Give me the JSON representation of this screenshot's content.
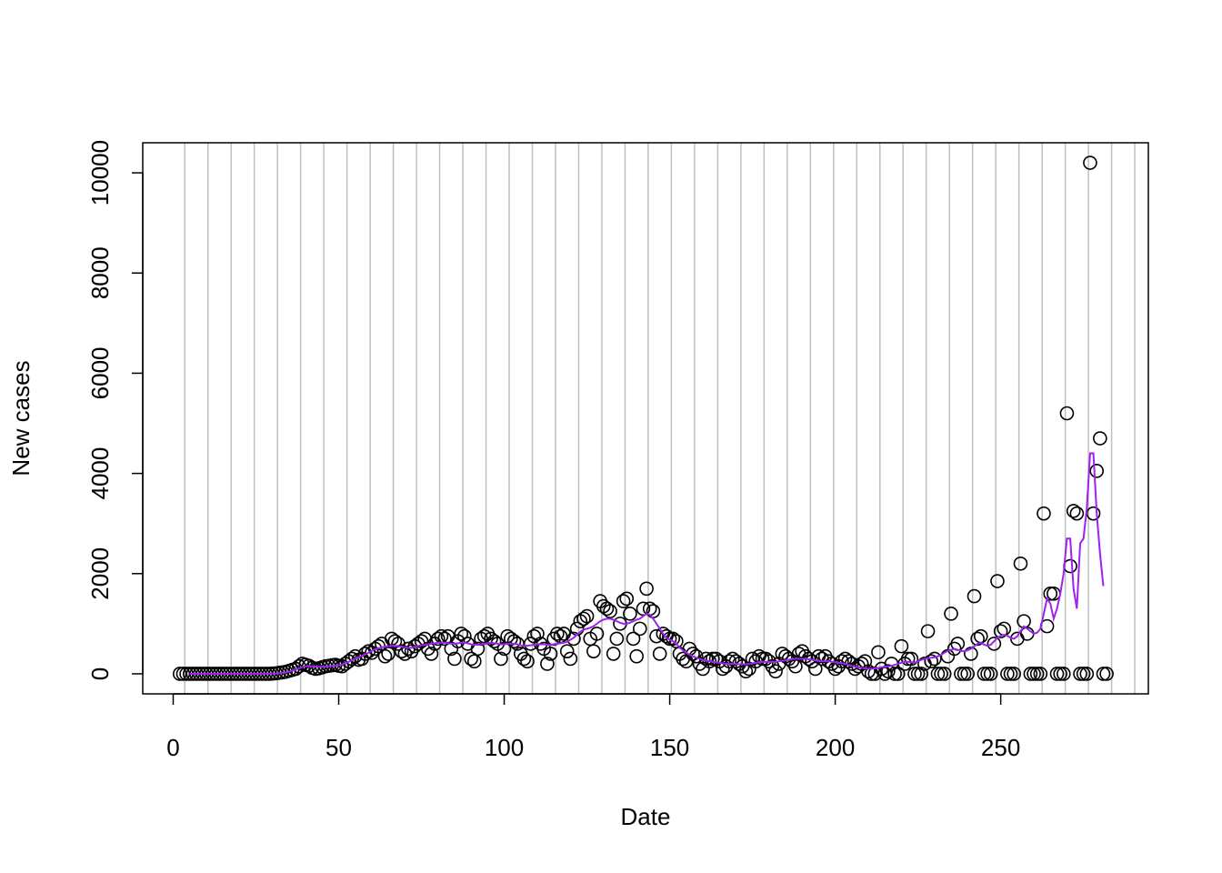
{
  "chart_data": {
    "type": "scatter",
    "xlabel": "Date",
    "ylabel": "New cases",
    "xlim": [
      -9.2,
      294.6
    ],
    "ylim": [
      -400,
      10600
    ],
    "xticks": [
      0,
      50,
      100,
      150,
      200,
      250
    ],
    "yticks": [
      0,
      2000,
      4000,
      6000,
      8000,
      10000
    ],
    "grid": "x",
    "x_gridlines": [
      3.5,
      10.5,
      17.5,
      24.5,
      31.5,
      38.5,
      45.5,
      52.5,
      59.5,
      66.5,
      73.5,
      80.5,
      87.5,
      94.5,
      101.5,
      108.5,
      115.5,
      122.5,
      129.5,
      136.5,
      143.5,
      150.5,
      157.5,
      164.5,
      171.5,
      178.5,
      185.5,
      192.5,
      199.5,
      206.5,
      213.5,
      220.5,
      227.5,
      234.5,
      241.5,
      248.5,
      255.5,
      262.5,
      269.5,
      276.5,
      283.5,
      290.5
    ],
    "x": [
      2,
      3,
      4,
      5,
      6,
      7,
      8,
      9,
      10,
      11,
      12,
      13,
      14,
      15,
      16,
      17,
      18,
      19,
      20,
      21,
      22,
      23,
      24,
      25,
      26,
      27,
      28,
      29,
      30,
      31,
      32,
      33,
      34,
      35,
      36,
      37,
      38,
      39,
      40,
      41,
      42,
      43,
      44,
      45,
      46,
      47,
      48,
      49,
      50,
      51,
      52,
      53,
      54,
      55,
      56,
      57,
      58,
      59,
      60,
      61,
      62,
      63,
      64,
      65,
      66,
      67,
      68,
      69,
      70,
      71,
      72,
      73,
      74,
      75,
      76,
      77,
      78,
      79,
      80,
      81,
      82,
      83,
      84,
      85,
      86,
      87,
      88,
      89,
      90,
      91,
      92,
      93,
      94,
      95,
      96,
      97,
      98,
      99,
      100,
      101,
      102,
      103,
      104,
      105,
      106,
      107,
      108,
      109,
      110,
      111,
      112,
      113,
      114,
      115,
      116,
      117,
      118,
      119,
      120,
      121,
      122,
      123,
      124,
      125,
      126,
      127,
      128,
      129,
      130,
      131,
      132,
      133,
      134,
      135,
      136,
      137,
      138,
      139,
      140,
      141,
      142,
      143,
      144,
      145,
      146,
      147,
      148,
      149,
      150,
      151,
      152,
      153,
      154,
      155,
      156,
      157,
      158,
      159,
      160,
      161,
      162,
      163,
      164,
      165,
      166,
      167,
      168,
      169,
      170,
      171,
      172,
      173,
      174,
      175,
      176,
      177,
      178,
      179,
      180,
      181,
      182,
      183,
      184,
      185,
      186,
      187,
      188,
      189,
      190,
      191,
      192,
      193,
      194,
      195,
      196,
      197,
      198,
      199,
      200,
      201,
      202,
      203,
      204,
      205,
      206,
      207,
      208,
      209,
      210,
      211,
      212,
      213,
      214,
      215,
      216,
      217,
      218,
      219,
      220,
      221,
      222,
      223,
      224,
      225,
      226,
      227,
      228,
      229,
      230,
      231,
      232,
      233,
      234,
      235,
      236,
      237,
      238,
      239,
      240,
      241,
      242,
      243,
      244,
      245,
      246,
      247,
      248,
      249,
      250,
      251,
      252,
      253,
      254,
      255,
      256,
      257,
      258,
      259,
      260,
      261,
      262,
      263,
      264,
      265,
      266,
      267,
      268,
      269,
      270,
      271,
      272,
      273,
      274,
      275,
      276,
      277,
      278,
      279,
      280,
      281,
      282
    ],
    "series": [
      {
        "mark": "circle",
        "color": "#000000",
        "values": [
          0,
          0,
          0,
          0,
          0,
          0,
          0,
          0,
          0,
          0,
          0,
          0,
          0,
          0,
          0,
          0,
          0,
          0,
          0,
          0,
          0,
          0,
          0,
          0,
          0,
          0,
          0,
          0,
          5,
          10,
          20,
          30,
          40,
          60,
          80,
          100,
          150,
          200,
          180,
          160,
          120,
          100,
          110,
          130,
          150,
          160,
          170,
          180,
          160,
          150,
          200,
          250,
          300,
          350,
          280,
          300,
          400,
          450,
          420,
          500,
          550,
          600,
          350,
          400,
          700,
          650,
          600,
          450,
          400,
          500,
          450,
          550,
          600,
          650,
          700,
          500,
          400,
          600,
          700,
          750,
          700,
          750,
          500,
          300,
          650,
          800,
          750,
          600,
          300,
          250,
          500,
          700,
          750,
          800,
          700,
          650,
          600,
          300,
          500,
          750,
          700,
          650,
          600,
          400,
          300,
          250,
          600,
          750,
          800,
          600,
          500,
          200,
          400,
          700,
          800,
          750,
          800,
          450,
          300,
          700,
          900,
          1050,
          1100,
          1150,
          700,
          450,
          800,
          1450,
          1350,
          1300,
          1250,
          400,
          700,
          1000,
          1450,
          1500,
          1200,
          700,
          350,
          900,
          1300,
          1700,
          1300,
          1250,
          750,
          400,
          800,
          750,
          700,
          700,
          650,
          400,
          300,
          250,
          500,
          400,
          350,
          200,
          100,
          300,
          250,
          300,
          300,
          250,
          100,
          150,
          250,
          300,
          250,
          200,
          150,
          50,
          100,
          300,
          250,
          350,
          300,
          300,
          250,
          150,
          50,
          200,
          400,
          350,
          300,
          250,
          150,
          400,
          450,
          350,
          300,
          250,
          100,
          350,
          300,
          350,
          250,
          200,
          100,
          150,
          250,
          300,
          250,
          200,
          100,
          150,
          200,
          250,
          50,
          0,
          0,
          430,
          100,
          0,
          50,
          200,
          0,
          0,
          550,
          200,
          300,
          300,
          0,
          0,
          0,
          200,
          850,
          250,
          300,
          0,
          0,
          0,
          350,
          1200,
          500,
          600,
          0,
          0,
          0,
          400,
          1550,
          700,
          750,
          0,
          0,
          0,
          600,
          1850,
          850,
          900,
          0,
          0,
          0,
          700,
          2200,
          1050,
          800,
          0,
          0,
          0,
          0,
          3200,
          950,
          1600,
          1600,
          0,
          0,
          0,
          5200,
          2150,
          3250,
          3200,
          0,
          0,
          0,
          10200,
          3200,
          4050,
          4700,
          0,
          0
        ]
      },
      {
        "mark": "line",
        "color": "#a020f0",
        "values": [
          null,
          null,
          null,
          0,
          0,
          0,
          0,
          0,
          0,
          0,
          0,
          0,
          0,
          0,
          0,
          0,
          0,
          0,
          0,
          0,
          0,
          0,
          0,
          0,
          0,
          0,
          1,
          2,
          4,
          7,
          12,
          20,
          30,
          44,
          63,
          85,
          110,
          135,
          150,
          155,
          150,
          145,
          140,
          140,
          145,
          150,
          155,
          160,
          170,
          185,
          210,
          240,
          270,
          300,
          330,
          360,
          390,
          420,
          460,
          490,
          510,
          530,
          540,
          550,
          560,
          560,
          550,
          540,
          530,
          520,
          520,
          540,
          560,
          570,
          580,
          590,
          600,
          610,
          620,
          620,
          620,
          610,
          600,
          600,
          610,
          620,
          620,
          610,
          590,
          580,
          580,
          590,
          600,
          610,
          620,
          610,
          600,
          590,
          590,
          600,
          600,
          600,
          590,
          570,
          560,
          560,
          570,
          580,
          590,
          590,
          590,
          580,
          580,
          590,
          600,
          610,
          620,
          640,
          680,
          720,
          780,
          840,
          880,
          900,
          920,
          950,
          1000,
          1050,
          1080,
          1100,
          1100,
          1080,
          1050,
          1020,
          1000,
          1000,
          1020,
          1050,
          1080,
          1100,
          1150,
          1200,
          1180,
          1100,
          1000,
          900,
          800,
          720,
          680,
          650,
          600,
          520,
          470,
          420,
          380,
          350,
          320,
          300,
          280,
          260,
          250,
          240,
          230,
          220,
          210,
          200,
          200,
          200,
          200,
          190,
          190,
          190,
          200,
          210,
          220,
          230,
          240,
          240,
          240,
          240,
          240,
          250,
          260,
          270,
          280,
          290,
          300,
          300,
          300,
          300,
          290,
          280,
          270,
          260,
          250,
          250,
          250,
          240,
          230,
          220,
          210,
          200,
          180,
          160,
          140,
          130,
          120,
          110,
          100,
          100,
          110,
          120,
          130,
          140,
          150,
          160,
          180,
          200,
          220,
          240,
          240,
          230,
          220,
          250,
          280,
          300,
          310,
          320,
          330,
          350,
          380,
          420,
          460,
          480,
          500,
          480,
          460,
          450,
          470,
          500,
          550,
          600,
          620,
          580,
          560,
          580,
          650,
          720,
          760,
          780,
          760,
          720,
          700,
          750,
          850,
          950,
          900,
          850,
          800,
          820,
          900,
          1200,
          1500,
          1400,
          1100,
          1300,
          1600,
          2000,
          2700,
          2700,
          1700,
          1300,
          2600,
          2700,
          3300,
          4400,
          4400,
          3200,
          2400,
          1750,
          null
        ]
      }
    ]
  }
}
